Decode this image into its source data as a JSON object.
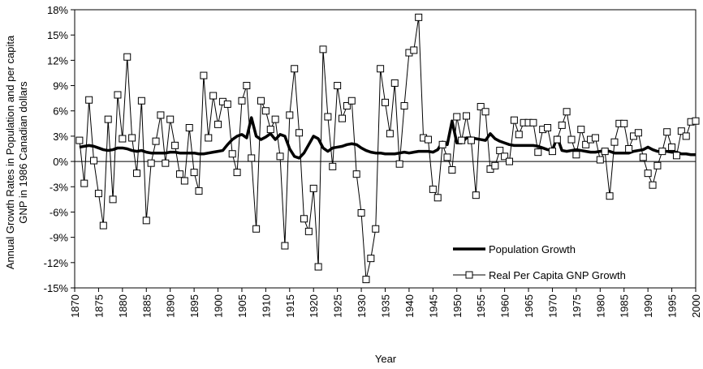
{
  "chart_data": {
    "type": "line",
    "xlabel": "Year",
    "ylabel": [
      "Annual Growth Rates in Population and per capita",
      "GNP in 1986 Canadian dollars"
    ],
    "x": [
      1871,
      1872,
      1873,
      1874,
      1875,
      1876,
      1877,
      1878,
      1879,
      1880,
      1881,
      1882,
      1883,
      1884,
      1885,
      1886,
      1887,
      1888,
      1889,
      1890,
      1891,
      1892,
      1893,
      1894,
      1895,
      1896,
      1897,
      1898,
      1899,
      1900,
      1901,
      1902,
      1903,
      1904,
      1905,
      1906,
      1907,
      1908,
      1909,
      1910,
      1911,
      1912,
      1913,
      1914,
      1915,
      1916,
      1917,
      1918,
      1919,
      1920,
      1921,
      1922,
      1923,
      1924,
      1925,
      1926,
      1927,
      1928,
      1929,
      1930,
      1931,
      1932,
      1933,
      1934,
      1935,
      1936,
      1937,
      1938,
      1939,
      1940,
      1941,
      1942,
      1943,
      1944,
      1945,
      1946,
      1947,
      1948,
      1949,
      1950,
      1951,
      1952,
      1953,
      1954,
      1955,
      1956,
      1957,
      1958,
      1959,
      1960,
      1961,
      1962,
      1963,
      1964,
      1965,
      1966,
      1967,
      1968,
      1969,
      1970,
      1971,
      1972,
      1973,
      1974,
      1975,
      1976,
      1977,
      1978,
      1979,
      1980,
      1981,
      1982,
      1983,
      1984,
      1985,
      1986,
      1987,
      1988,
      1989,
      1990,
      1991,
      1992,
      1993,
      1994,
      1995,
      1996,
      1997,
      1998,
      1999,
      2000
    ],
    "series": [
      {
        "name": "Population Growth",
        "color": "#000000",
        "marker": false,
        "values": [
          1.7,
          1.8,
          1.9,
          1.8,
          1.6,
          1.4,
          1.3,
          1.4,
          1.6,
          1.6,
          1.5,
          1.3,
          1.2,
          1.3,
          1.1,
          1.0,
          1.0,
          1.0,
          1.0,
          1.1,
          1.1,
          1.0,
          1.0,
          1.0,
          1.0,
          0.9,
          0.9,
          1.0,
          1.1,
          1.2,
          1.3,
          2.0,
          2.6,
          3.0,
          3.2,
          2.8,
          5.2,
          3.0,
          2.6,
          2.9,
          3.3,
          2.6,
          3.2,
          3.0,
          1.5,
          0.6,
          0.4,
          1.0,
          2.0,
          3.0,
          2.7,
          1.6,
          1.2,
          1.6,
          1.7,
          1.8,
          2.0,
          2.1,
          2.0,
          1.6,
          1.3,
          1.1,
          1.0,
          1.0,
          0.9,
          0.9,
          0.9,
          1.0,
          1.1,
          1.0,
          1.1,
          1.2,
          1.2,
          1.2,
          1.1,
          1.4,
          2.3,
          2.0,
          4.8,
          2.2,
          2.2,
          2.8,
          2.8,
          2.7,
          2.6,
          2.5,
          3.3,
          2.7,
          2.4,
          2.2,
          2.0,
          1.9,
          1.9,
          1.9,
          1.9,
          1.9,
          1.8,
          1.6,
          1.4,
          1.3,
          2.9,
          1.3,
          1.2,
          1.3,
          1.4,
          1.3,
          1.2,
          1.1,
          1.1,
          1.2,
          1.3,
          1.2,
          1.0,
          1.0,
          1.0,
          1.0,
          1.2,
          1.3,
          1.4,
          1.7,
          1.4,
          1.2,
          1.2,
          1.2,
          1.1,
          1.1,
          0.9,
          0.9,
          0.8,
          0.8
        ]
      },
      {
        "name": "Real Per Capita GNP Growth",
        "color": "#000000",
        "marker": true,
        "values": [
          2.5,
          -2.6,
          7.3,
          0.1,
          -3.8,
          -7.6,
          5.0,
          -4.5,
          7.9,
          2.7,
          12.4,
          2.8,
          -1.4,
          7.2,
          -7.0,
          -0.2,
          2.4,
          5.5,
          -0.2,
          5.0,
          1.9,
          -1.5,
          -2.3,
          4.0,
          -1.3,
          -3.5,
          10.2,
          2.8,
          7.8,
          4.4,
          7.1,
          6.8,
          0.9,
          -1.3,
          7.2,
          9.0,
          0.4,
          -8.0,
          7.2,
          6.0,
          3.8,
          5.0,
          0.6,
          -10.0,
          5.5,
          11.0,
          3.4,
          -6.8,
          -8.3,
          -3.2,
          -12.5,
          13.3,
          5.3,
          -0.6,
          9.0,
          5.1,
          6.6,
          7.2,
          -1.5,
          -6.1,
          -14.0,
          -11.5,
          -8.0,
          11.0,
          7.0,
          3.3,
          9.3,
          -0.3,
          6.6,
          12.9,
          13.2,
          17.1,
          2.8,
          2.6,
          -3.3,
          -4.3,
          2.0,
          0.5,
          -1.0,
          5.3,
          2.5,
          5.4,
          2.5,
          -4.0,
          6.5,
          5.9,
          -0.9,
          -0.5,
          1.3,
          0.6,
          0.0,
          4.9,
          3.2,
          4.6,
          4.6,
          4.6,
          1.1,
          3.8,
          4.0,
          1.2,
          2.6,
          4.3,
          5.9,
          2.6,
          0.8,
          3.8,
          2.0,
          2.6,
          2.8,
          0.2,
          1.2,
          -4.1,
          2.3,
          4.5,
          4.5,
          1.5,
          3.0,
          3.4,
          0.5,
          -1.4,
          -2.8,
          -0.5,
          1.2,
          3.5,
          1.7,
          0.7,
          3.6,
          3.0,
          4.7,
          4.8
        ]
      }
    ],
    "xlim": [
      1870,
      2000
    ],
    "xticks": [
      1870,
      1875,
      1880,
      1885,
      1890,
      1895,
      1900,
      1905,
      1910,
      1915,
      1920,
      1925,
      1930,
      1935,
      1940,
      1945,
      1950,
      1955,
      1960,
      1965,
      1970,
      1975,
      1980,
      1985,
      1990,
      1995,
      2000
    ],
    "ylim": [
      -15,
      18
    ],
    "yticks": [
      {
        "value": -15,
        "label": "-15%"
      },
      {
        "value": -12,
        "label": "-12%"
      },
      {
        "value": -9,
        "label": "-9%"
      },
      {
        "value": -6,
        "label": "-6%"
      },
      {
        "value": -3,
        "label": "-3%"
      },
      {
        "value": 0,
        "label": "0%"
      },
      {
        "value": 3,
        "label": "3%"
      },
      {
        "value": 6,
        "label": "6%"
      },
      {
        "value": 9,
        "label": "9%"
      },
      {
        "value": 12,
        "label": "12%"
      },
      {
        "value": 15,
        "label": "15%"
      },
      {
        "value": 18,
        "label": "18%"
      }
    ],
    "grid": false,
    "legend": "lower right"
  }
}
